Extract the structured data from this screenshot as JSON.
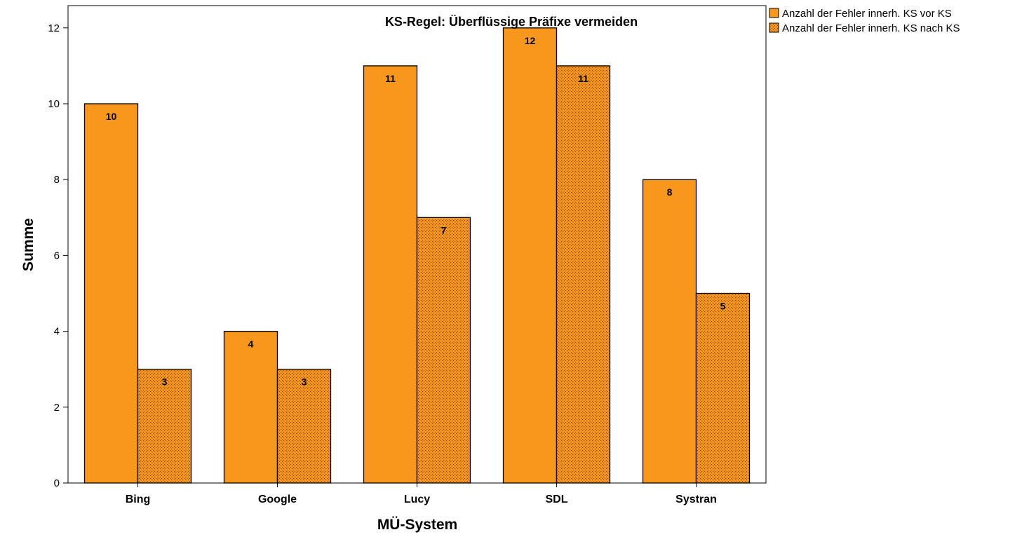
{
  "chart_data": {
    "type": "bar",
    "title": "KS-Regel: Überflüssige Präfixe vermeiden",
    "xlabel": "MÜ-System",
    "ylabel": "Summe",
    "categories": [
      "Bing",
      "Google",
      "Lucy",
      "SDL",
      "Systran"
    ],
    "series": [
      {
        "name": "Anzahl der Fehler innerh. KS vor KS",
        "values": [
          10,
          4,
          11,
          12,
          8
        ],
        "color": "#F7971C",
        "pattern": "solid"
      },
      {
        "name": "Anzahl der Fehler innerh. KS nach KS",
        "values": [
          3,
          3,
          7,
          11,
          5
        ],
        "color": "#F7971C",
        "pattern": "crosshatch"
      }
    ],
    "ylim": [
      0,
      12.5
    ],
    "yticks": [
      0,
      2,
      4,
      6,
      8,
      10,
      12
    ],
    "grid": false,
    "legend_position": "top-right-outside",
    "data_labels": true
  }
}
